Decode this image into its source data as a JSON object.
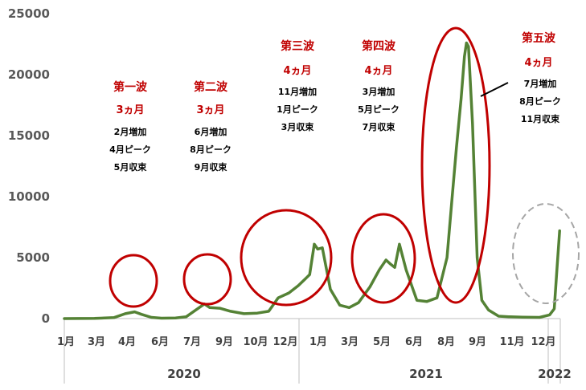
{
  "chart_data": {
    "type": "line",
    "title": "",
    "xlabel": "",
    "ylabel": "",
    "ylim": [
      0,
      25000
    ],
    "yticks": [
      "0",
      "5000",
      "10000",
      "15000",
      "20000",
      "25000"
    ],
    "xticks": [
      "1月",
      "3月",
      "4月",
      "6月",
      "7月",
      "9月",
      "10月",
      "12月",
      "1月",
      "3月",
      "5月",
      "6月",
      "8月",
      "9月",
      "11月",
      "12月"
    ],
    "years": [
      "2020",
      "2021",
      "2022"
    ],
    "grid": false,
    "line_color": "#548235",
    "highlight_color": "#c00000",
    "series": [
      {
        "x": [
          "2020-01-01",
          "2020-02-15",
          "2020-03-15",
          "2020-04-01",
          "2020-04-15",
          "2020-04-25",
          "2020-05-10",
          "2020-05-25",
          "2020-06-15",
          "2020-07-01",
          "2020-07-15",
          "2020-07-28",
          "2020-08-05",
          "2020-08-20",
          "2020-09-05",
          "2020-09-25",
          "2020-10-15",
          "2020-11-01",
          "2020-11-15",
          "2020-12-01",
          "2020-12-15",
          "2021-01-01",
          "2021-01-08",
          "2021-01-13",
          "2021-01-20",
          "2021-02-01",
          "2021-02-15",
          "2021-03-01",
          "2021-03-15",
          "2021-04-01",
          "2021-04-15",
          "2021-04-25",
          "2021-05-01",
          "2021-05-08",
          "2021-05-15",
          "2021-05-25",
          "2021-06-10",
          "2021-06-25",
          "2021-07-10",
          "2021-07-25",
          "2021-08-01",
          "2021-08-08",
          "2021-08-15",
          "2021-08-20",
          "2021-08-23",
          "2021-08-26",
          "2021-09-01",
          "2021-09-08",
          "2021-09-15",
          "2021-09-25",
          "2021-10-10",
          "2021-10-25",
          "2021-11-15",
          "2021-12-10",
          "2021-12-25",
          "2022-01-01",
          "2022-01-05",
          "2022-01-09"
        ],
        "values": [
          0,
          10,
          80,
          400,
          550,
          350,
          100,
          30,
          50,
          150,
          700,
          1200,
          900,
          850,
          600,
          400,
          450,
          600,
          1700,
          2100,
          2700,
          3600,
          6100,
          5700,
          5800,
          2400,
          1100,
          900,
          1300,
          2600,
          4000,
          4800,
          4500,
          4200,
          6100,
          4000,
          1500,
          1400,
          1700,
          5000,
          9500,
          14000,
          18000,
          21500,
          22600,
          22300,
          16000,
          5000,
          1500,
          700,
          200,
          150,
          120,
          100,
          300,
          800,
          4000,
          7200
        ]
      }
    ],
    "annotations": [
      {
        "title": "第一波",
        "duration": "3ヵ月",
        "lines": [
          "2月増加",
          "4月ピーク",
          "5月収束"
        ]
      },
      {
        "title": "第二波",
        "duration": "3ヵ月",
        "lines": [
          "6月増加",
          "8月ピーク",
          "9月収束"
        ]
      },
      {
        "title": "第三波",
        "duration": "4ヵ月",
        "lines": [
          "11月増加",
          "1月ピーク",
          "3月収束"
        ]
      },
      {
        "title": "第四波",
        "duration": "4ヵ月",
        "lines": [
          "3月増加",
          "5月ピーク",
          "7月収束"
        ]
      },
      {
        "title": "第五波",
        "duration": "4ヵ月",
        "lines": [
          "7月増加",
          "8月ピーク",
          "11月収束"
        ]
      }
    ]
  }
}
